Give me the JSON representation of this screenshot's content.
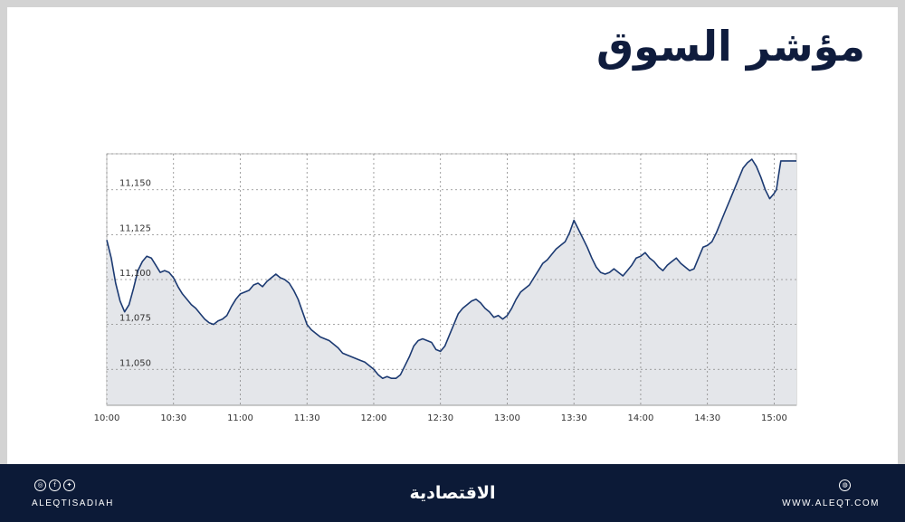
{
  "header": {
    "title": "مؤشر السوق"
  },
  "footer": {
    "social_handle": "ALEQTISADIAH",
    "brand": "الاقتصادية",
    "website": "WWW.ALEQT.COM",
    "social_icons": [
      "instagram-icon",
      "facebook-icon",
      "twitter-icon"
    ],
    "web_icon": "globe-icon"
  },
  "colors": {
    "line": "#1c3a72",
    "area": "#e4e6ea",
    "footer_bg": "#0c1a37",
    "title": "#0f1c3d"
  },
  "chart_data": {
    "type": "area",
    "title": "",
    "xlabel": "",
    "ylabel": "",
    "x_ticks": [
      "10:00",
      "10:30",
      "11:00",
      "11:30",
      "12:00",
      "12:30",
      "13:00",
      "13:30",
      "14:00",
      "14:30",
      "15:00"
    ],
    "y_ticks": [
      11050,
      11075,
      11100,
      11125,
      11150
    ],
    "y_tick_labels": [
      "11,050",
      "11,075",
      "11,100",
      "11,125",
      "11,150"
    ],
    "xlim": [
      "10:00",
      "15:10"
    ],
    "ylim": [
      11030,
      11170
    ],
    "grid": true,
    "series": [
      {
        "values": [
          [
            "10:00",
            11122
          ],
          [
            "10:02",
            11112
          ],
          [
            "10:04",
            11098
          ],
          [
            "10:06",
            11088
          ],
          [
            "10:08",
            11082
          ],
          [
            "10:10",
            11086
          ],
          [
            "10:12",
            11095
          ],
          [
            "10:14",
            11105
          ],
          [
            "10:16",
            11110
          ],
          [
            "10:18",
            11113
          ],
          [
            "10:20",
            11112
          ],
          [
            "10:22",
            11108
          ],
          [
            "10:24",
            11104
          ],
          [
            "10:26",
            11105
          ],
          [
            "10:28",
            11104
          ],
          [
            "10:30",
            11101
          ],
          [
            "10:32",
            11096
          ],
          [
            "10:34",
            11092
          ],
          [
            "10:36",
            11089
          ],
          [
            "10:38",
            11086
          ],
          [
            "10:40",
            11084
          ],
          [
            "10:42",
            11081
          ],
          [
            "10:44",
            11078
          ],
          [
            "10:46",
            11076
          ],
          [
            "10:48",
            11075
          ],
          [
            "10:50",
            11077
          ],
          [
            "10:52",
            11078
          ],
          [
            "10:54",
            11080
          ],
          [
            "10:56",
            11085
          ],
          [
            "10:58",
            11089
          ],
          [
            "11:00",
            11092
          ],
          [
            "11:02",
            11093
          ],
          [
            "11:04",
            11094
          ],
          [
            "11:06",
            11097
          ],
          [
            "11:08",
            11098
          ],
          [
            "11:10",
            11096
          ],
          [
            "11:12",
            11099
          ],
          [
            "11:14",
            11101
          ],
          [
            "11:16",
            11103
          ],
          [
            "11:18",
            11101
          ],
          [
            "11:20",
            11100
          ],
          [
            "11:22",
            11098
          ],
          [
            "11:24",
            11094
          ],
          [
            "11:26",
            11089
          ],
          [
            "11:28",
            11082
          ],
          [
            "11:30",
            11075
          ],
          [
            "11:32",
            11072
          ],
          [
            "11:34",
            11070
          ],
          [
            "11:36",
            11068
          ],
          [
            "11:38",
            11067
          ],
          [
            "11:40",
            11066
          ],
          [
            "11:42",
            11064
          ],
          [
            "11:44",
            11062
          ],
          [
            "11:46",
            11059
          ],
          [
            "11:48",
            11058
          ],
          [
            "11:50",
            11057
          ],
          [
            "11:52",
            11056
          ],
          [
            "11:54",
            11055
          ],
          [
            "11:56",
            11054
          ],
          [
            "11:58",
            11052
          ],
          [
            "12:00",
            11050
          ],
          [
            "12:02",
            11047
          ],
          [
            "12:04",
            11045
          ],
          [
            "12:06",
            11046
          ],
          [
            "12:08",
            11045
          ],
          [
            "12:10",
            11045
          ],
          [
            "12:12",
            11047
          ],
          [
            "12:14",
            11052
          ],
          [
            "12:16",
            11057
          ],
          [
            "12:18",
            11063
          ],
          [
            "12:20",
            11066
          ],
          [
            "12:22",
            11067
          ],
          [
            "12:24",
            11066
          ],
          [
            "12:26",
            11065
          ],
          [
            "12:28",
            11061
          ],
          [
            "12:30",
            11060
          ],
          [
            "12:32",
            11063
          ],
          [
            "12:34",
            11069
          ],
          [
            "12:36",
            11075
          ],
          [
            "12:38",
            11081
          ],
          [
            "12:40",
            11084
          ],
          [
            "12:42",
            11086
          ],
          [
            "12:44",
            11088
          ],
          [
            "12:46",
            11089
          ],
          [
            "12:48",
            11087
          ],
          [
            "12:50",
            11084
          ],
          [
            "12:52",
            11082
          ],
          [
            "12:54",
            11079
          ],
          [
            "12:56",
            11080
          ],
          [
            "12:58",
            11078
          ],
          [
            "13:00",
            11080
          ],
          [
            "13:02",
            11084
          ],
          [
            "13:04",
            11089
          ],
          [
            "13:06",
            11093
          ],
          [
            "13:08",
            11095
          ],
          [
            "13:10",
            11097
          ],
          [
            "13:12",
            11101
          ],
          [
            "13:14",
            11105
          ],
          [
            "13:16",
            11109
          ],
          [
            "13:18",
            11111
          ],
          [
            "13:20",
            11114
          ],
          [
            "13:22",
            11117
          ],
          [
            "13:24",
            11119
          ],
          [
            "13:26",
            11121
          ],
          [
            "13:28",
            11126
          ],
          [
            "13:30",
            11133
          ],
          [
            "13:32",
            11128
          ],
          [
            "13:34",
            11123
          ],
          [
            "13:36",
            11118
          ],
          [
            "13:38",
            11112
          ],
          [
            "13:40",
            11107
          ],
          [
            "13:42",
            11104
          ],
          [
            "13:44",
            11103
          ],
          [
            "13:46",
            11104
          ],
          [
            "13:48",
            11106
          ],
          [
            "13:50",
            11104
          ],
          [
            "13:52",
            11102
          ],
          [
            "13:54",
            11105
          ],
          [
            "13:56",
            11108
          ],
          [
            "13:58",
            11112
          ],
          [
            "14:00",
            11113
          ],
          [
            "14:02",
            11115
          ],
          [
            "14:04",
            11112
          ],
          [
            "14:06",
            11110
          ],
          [
            "14:08",
            11107
          ],
          [
            "14:10",
            11105
          ],
          [
            "14:12",
            11108
          ],
          [
            "14:14",
            11110
          ],
          [
            "14:16",
            11112
          ],
          [
            "14:18",
            11109
          ],
          [
            "14:20",
            11107
          ],
          [
            "14:22",
            11105
          ],
          [
            "14:24",
            11106
          ],
          [
            "14:26",
            11112
          ],
          [
            "14:28",
            11118
          ],
          [
            "14:30",
            11119
          ],
          [
            "14:32",
            11121
          ],
          [
            "14:34",
            11126
          ],
          [
            "14:36",
            11132
          ],
          [
            "14:38",
            11138
          ],
          [
            "14:40",
            11144
          ],
          [
            "14:42",
            11150
          ],
          [
            "14:44",
            11156
          ],
          [
            "14:46",
            11162
          ],
          [
            "14:48",
            11165
          ],
          [
            "14:50",
            11167
          ],
          [
            "14:52",
            11163
          ],
          [
            "14:54",
            11157
          ],
          [
            "14:56",
            11150
          ],
          [
            "14:58",
            11145
          ],
          [
            "15:00",
            11148
          ],
          [
            "15:01",
            11150
          ],
          [
            "15:02",
            11158
          ],
          [
            "15:03",
            11166
          ],
          [
            "15:10",
            11166
          ]
        ]
      }
    ]
  }
}
